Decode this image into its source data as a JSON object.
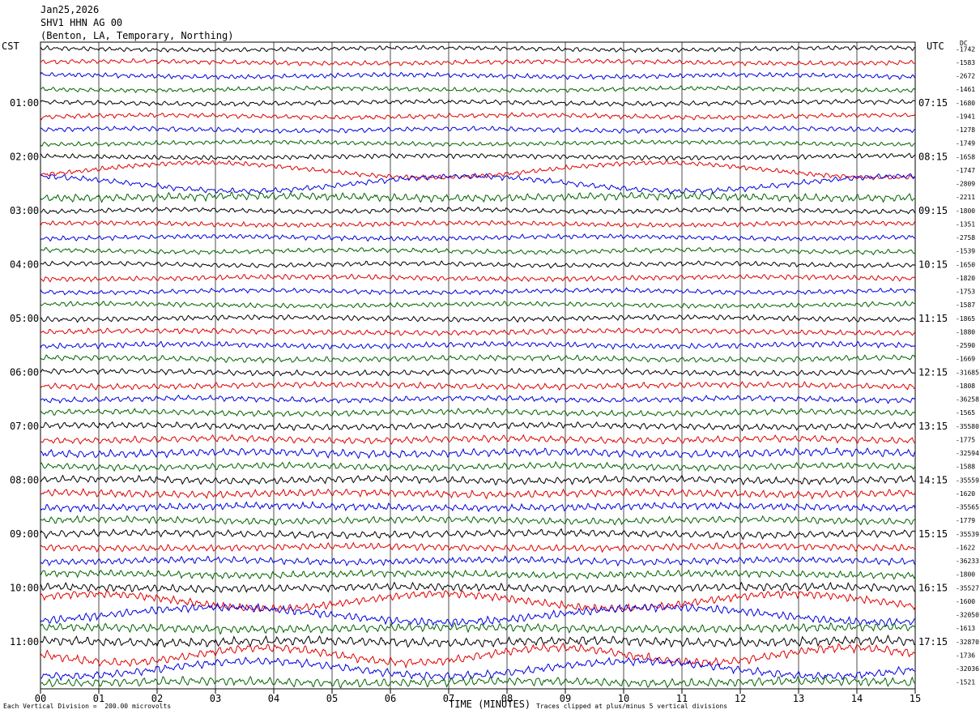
{
  "header": {
    "date": "Jan25,2026",
    "station": "SHV1 HHN AG 00",
    "location": "(Benton, LA, Temporary, Northing)"
  },
  "left_axis_label": "CST",
  "right_axis_label": "UTC",
  "dc_label": "DC",
  "footer": {
    "scale_note": "Each Vertical Division =  200.00 microvolts",
    "xlabel": "TIME (MINUTES)",
    "clip_note": "Traces clipped at plus/minus 5 vertical divisions"
  },
  "colors": {
    "trace_cycle": [
      "#000000",
      "#e00000",
      "#0000e0",
      "#006400"
    ],
    "grid": "#000000"
  },
  "chart_data": {
    "type": "line",
    "title": "SHV1 HHN AG 00",
    "xlabel": "TIME (MINUTES)",
    "xlim": [
      0,
      15
    ],
    "x_ticks": [
      "00",
      "01",
      "02",
      "03",
      "04",
      "05",
      "06",
      "07",
      "08",
      "09",
      "10",
      "11",
      "12",
      "13",
      "14",
      "15"
    ],
    "grid": true,
    "rows_per_hour": 4,
    "row_count": 48,
    "cst_hour_labels": [
      "01:00",
      "02:00",
      "03:00",
      "04:00",
      "05:00",
      "06:00",
      "07:00",
      "08:00",
      "09:00",
      "10:00",
      "11:00"
    ],
    "utc_hour_labels": [
      "07:15",
      "08:15",
      "09:15",
      "10:15",
      "11:15",
      "12:15",
      "13:15",
      "14:15",
      "15:15",
      "16:15",
      "17:15"
    ],
    "dc_offsets": [
      "-1742",
      "-1583",
      "-2672",
      "-1461",
      "-1680",
      "-1941",
      "-1278",
      "-1749",
      "-1658",
      "-1747",
      "-2809",
      "-2211",
      "-1800",
      "-1351",
      "-2758",
      "-1539",
      "-1650",
      "-1820",
      "-1753",
      "-1587",
      "-1865",
      "-1880",
      "-2590",
      "-1669",
      "-31685",
      "-1808",
      "-36258",
      "-1565",
      "-35580",
      "-1775",
      "-32594",
      "-1588",
      "-35559",
      "-1620",
      "-35565",
      "-1779",
      "-35539",
      "-1622",
      "-36233",
      "-1800",
      "-35527",
      "-1600",
      "-32050",
      "-1613",
      "-32870",
      "-1736",
      "-32036",
      "-1521"
    ],
    "amplitude_scale": [
      0.55,
      0.6,
      0.6,
      0.55,
      0.6,
      0.6,
      0.6,
      0.55,
      0.6,
      0.6,
      0.7,
      1.0,
      0.6,
      0.6,
      0.6,
      0.6,
      0.6,
      0.65,
      0.6,
      0.6,
      0.65,
      0.7,
      0.7,
      0.7,
      0.7,
      0.75,
      0.7,
      0.75,
      0.8,
      0.85,
      1.0,
      0.8,
      0.9,
      0.95,
      0.9,
      0.85,
      0.9,
      0.85,
      0.85,
      0.9,
      1.0,
      1.0,
      1.0,
      1.05,
      1.15,
      1.1,
      1.0,
      1.1
    ]
  }
}
